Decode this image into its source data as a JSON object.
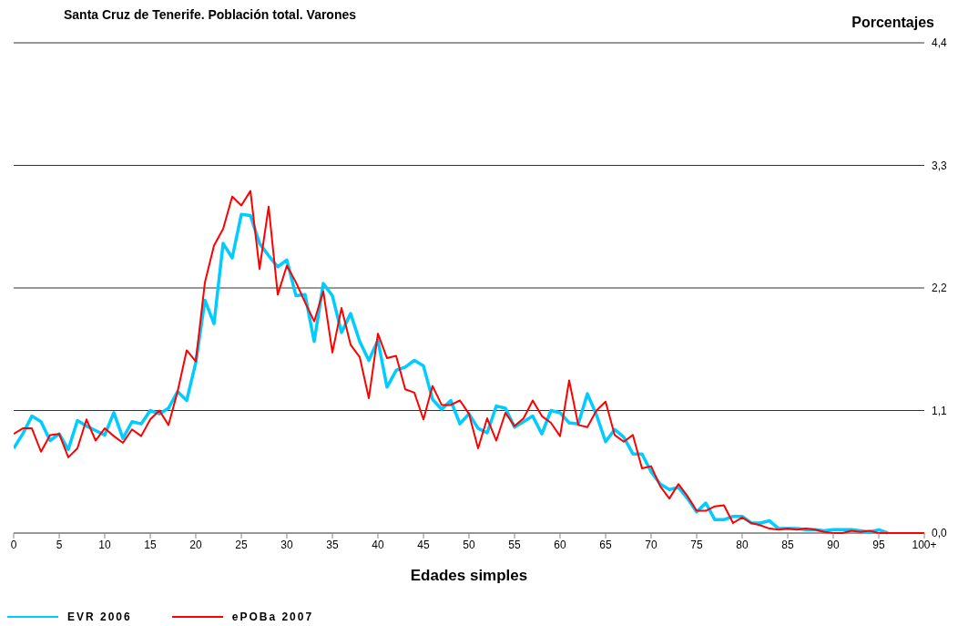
{
  "chart_data": {
    "type": "line",
    "title": "Santa Cruz de Tenerife. Población total. Varones",
    "ylabel": "Porcentajes",
    "xlabel": "Edades simples",
    "categories": [
      "0",
      null,
      null,
      null,
      null,
      "5",
      null,
      null,
      null,
      null,
      "10",
      null,
      null,
      null,
      null,
      "15",
      null,
      null,
      null,
      null,
      "20",
      null,
      null,
      null,
      null,
      "25",
      null,
      null,
      null,
      null,
      "30",
      null,
      null,
      null,
      null,
      "35",
      null,
      null,
      null,
      null,
      "40",
      null,
      null,
      null,
      null,
      "45",
      null,
      null,
      null,
      null,
      "50",
      null,
      null,
      null,
      null,
      "55",
      null,
      null,
      null,
      null,
      "60",
      null,
      null,
      null,
      null,
      "65",
      null,
      null,
      null,
      null,
      "70",
      null,
      null,
      null,
      null,
      "75",
      null,
      null,
      null,
      null,
      "80",
      null,
      null,
      null,
      null,
      "85",
      null,
      null,
      null,
      null,
      "90",
      null,
      null,
      null,
      null,
      "95",
      null,
      null,
      null,
      null,
      "100+"
    ],
    "series": [
      {
        "name": "EVR 2006",
        "color": "#00ccff",
        "values": [
          0.76,
          0.89,
          1.05,
          1.0,
          0.83,
          0.89,
          0.75,
          1.01,
          0.96,
          0.92,
          0.88,
          1.08,
          0.85,
          1.0,
          0.98,
          1.1,
          1.07,
          1.12,
          1.27,
          1.19,
          1.53,
          2.09,
          1.88,
          2.6,
          2.47,
          2.86,
          2.85,
          2.6,
          2.49,
          2.39,
          2.45,
          2.13,
          2.14,
          1.72,
          2.24,
          2.13,
          1.8,
          1.97,
          1.72,
          1.55,
          1.73,
          1.31,
          1.46,
          1.49,
          1.55,
          1.5,
          1.2,
          1.11,
          1.19,
          0.98,
          1.07,
          0.94,
          0.9,
          1.14,
          1.12,
          0.95,
          1.0,
          1.05,
          0.89,
          1.1,
          1.08,
          0.99,
          0.98,
          1.25,
          1.06,
          0.82,
          0.93,
          0.86,
          0.71,
          0.71,
          0.55,
          0.44,
          0.39,
          0.41,
          0.31,
          0.19,
          0.27,
          0.12,
          0.12,
          0.15,
          0.15,
          0.09,
          0.09,
          0.11,
          0.04,
          0.04,
          0.04,
          0.03,
          0.03,
          0.02,
          0.03,
          0.03,
          0.03,
          0.02,
          0.01,
          0.03,
          0.0,
          null,
          null,
          null,
          null
        ]
      },
      {
        "name": "ePOBa 2007",
        "color": "#ff0000",
        "values": [
          0.89,
          0.94,
          0.94,
          0.73,
          0.88,
          0.89,
          0.68,
          0.76,
          1.02,
          0.83,
          0.94,
          0.87,
          0.81,
          0.93,
          0.87,
          1.02,
          1.1,
          0.97,
          1.27,
          1.64,
          1.54,
          2.25,
          2.58,
          2.73,
          3.02,
          2.94,
          3.07,
          2.37,
          2.93,
          2.14,
          2.4,
          2.25,
          2.07,
          1.9,
          2.17,
          1.62,
          2.02,
          1.69,
          1.58,
          1.21,
          1.79,
          1.57,
          1.59,
          1.29,
          1.26,
          1.02,
          1.32,
          1.15,
          1.15,
          1.19,
          1.07,
          0.76,
          1.03,
          0.83,
          1.08,
          0.96,
          1.03,
          1.19,
          1.05,
          0.99,
          0.87,
          1.37,
          0.97,
          0.95,
          1.1,
          1.18,
          0.88,
          0.82,
          0.88,
          0.58,
          0.6,
          0.42,
          0.31,
          0.44,
          0.33,
          0.2,
          0.2,
          0.24,
          0.25,
          0.09,
          0.14,
          0.09,
          0.07,
          0.04,
          0.03,
          0.04,
          0.03,
          0.04,
          0.03,
          0.01,
          0.0,
          0.0,
          0.02,
          0.01,
          0.02,
          0.0,
          0.0,
          0.0,
          0.0,
          0.0,
          0.0
        ]
      }
    ],
    "ylim": [
      0,
      4.4
    ],
    "yticks": [
      {
        "value": 0,
        "label": "0,0"
      },
      {
        "value": 1.1,
        "label": "1,1"
      },
      {
        "value": 2.2,
        "label": "2,2"
      },
      {
        "value": 3.3,
        "label": "3,3"
      },
      {
        "value": 4.4,
        "label": "4,4"
      }
    ],
    "grid": "y",
    "legend": "bottom left",
    "marker": "none",
    "line_style": "solid"
  }
}
